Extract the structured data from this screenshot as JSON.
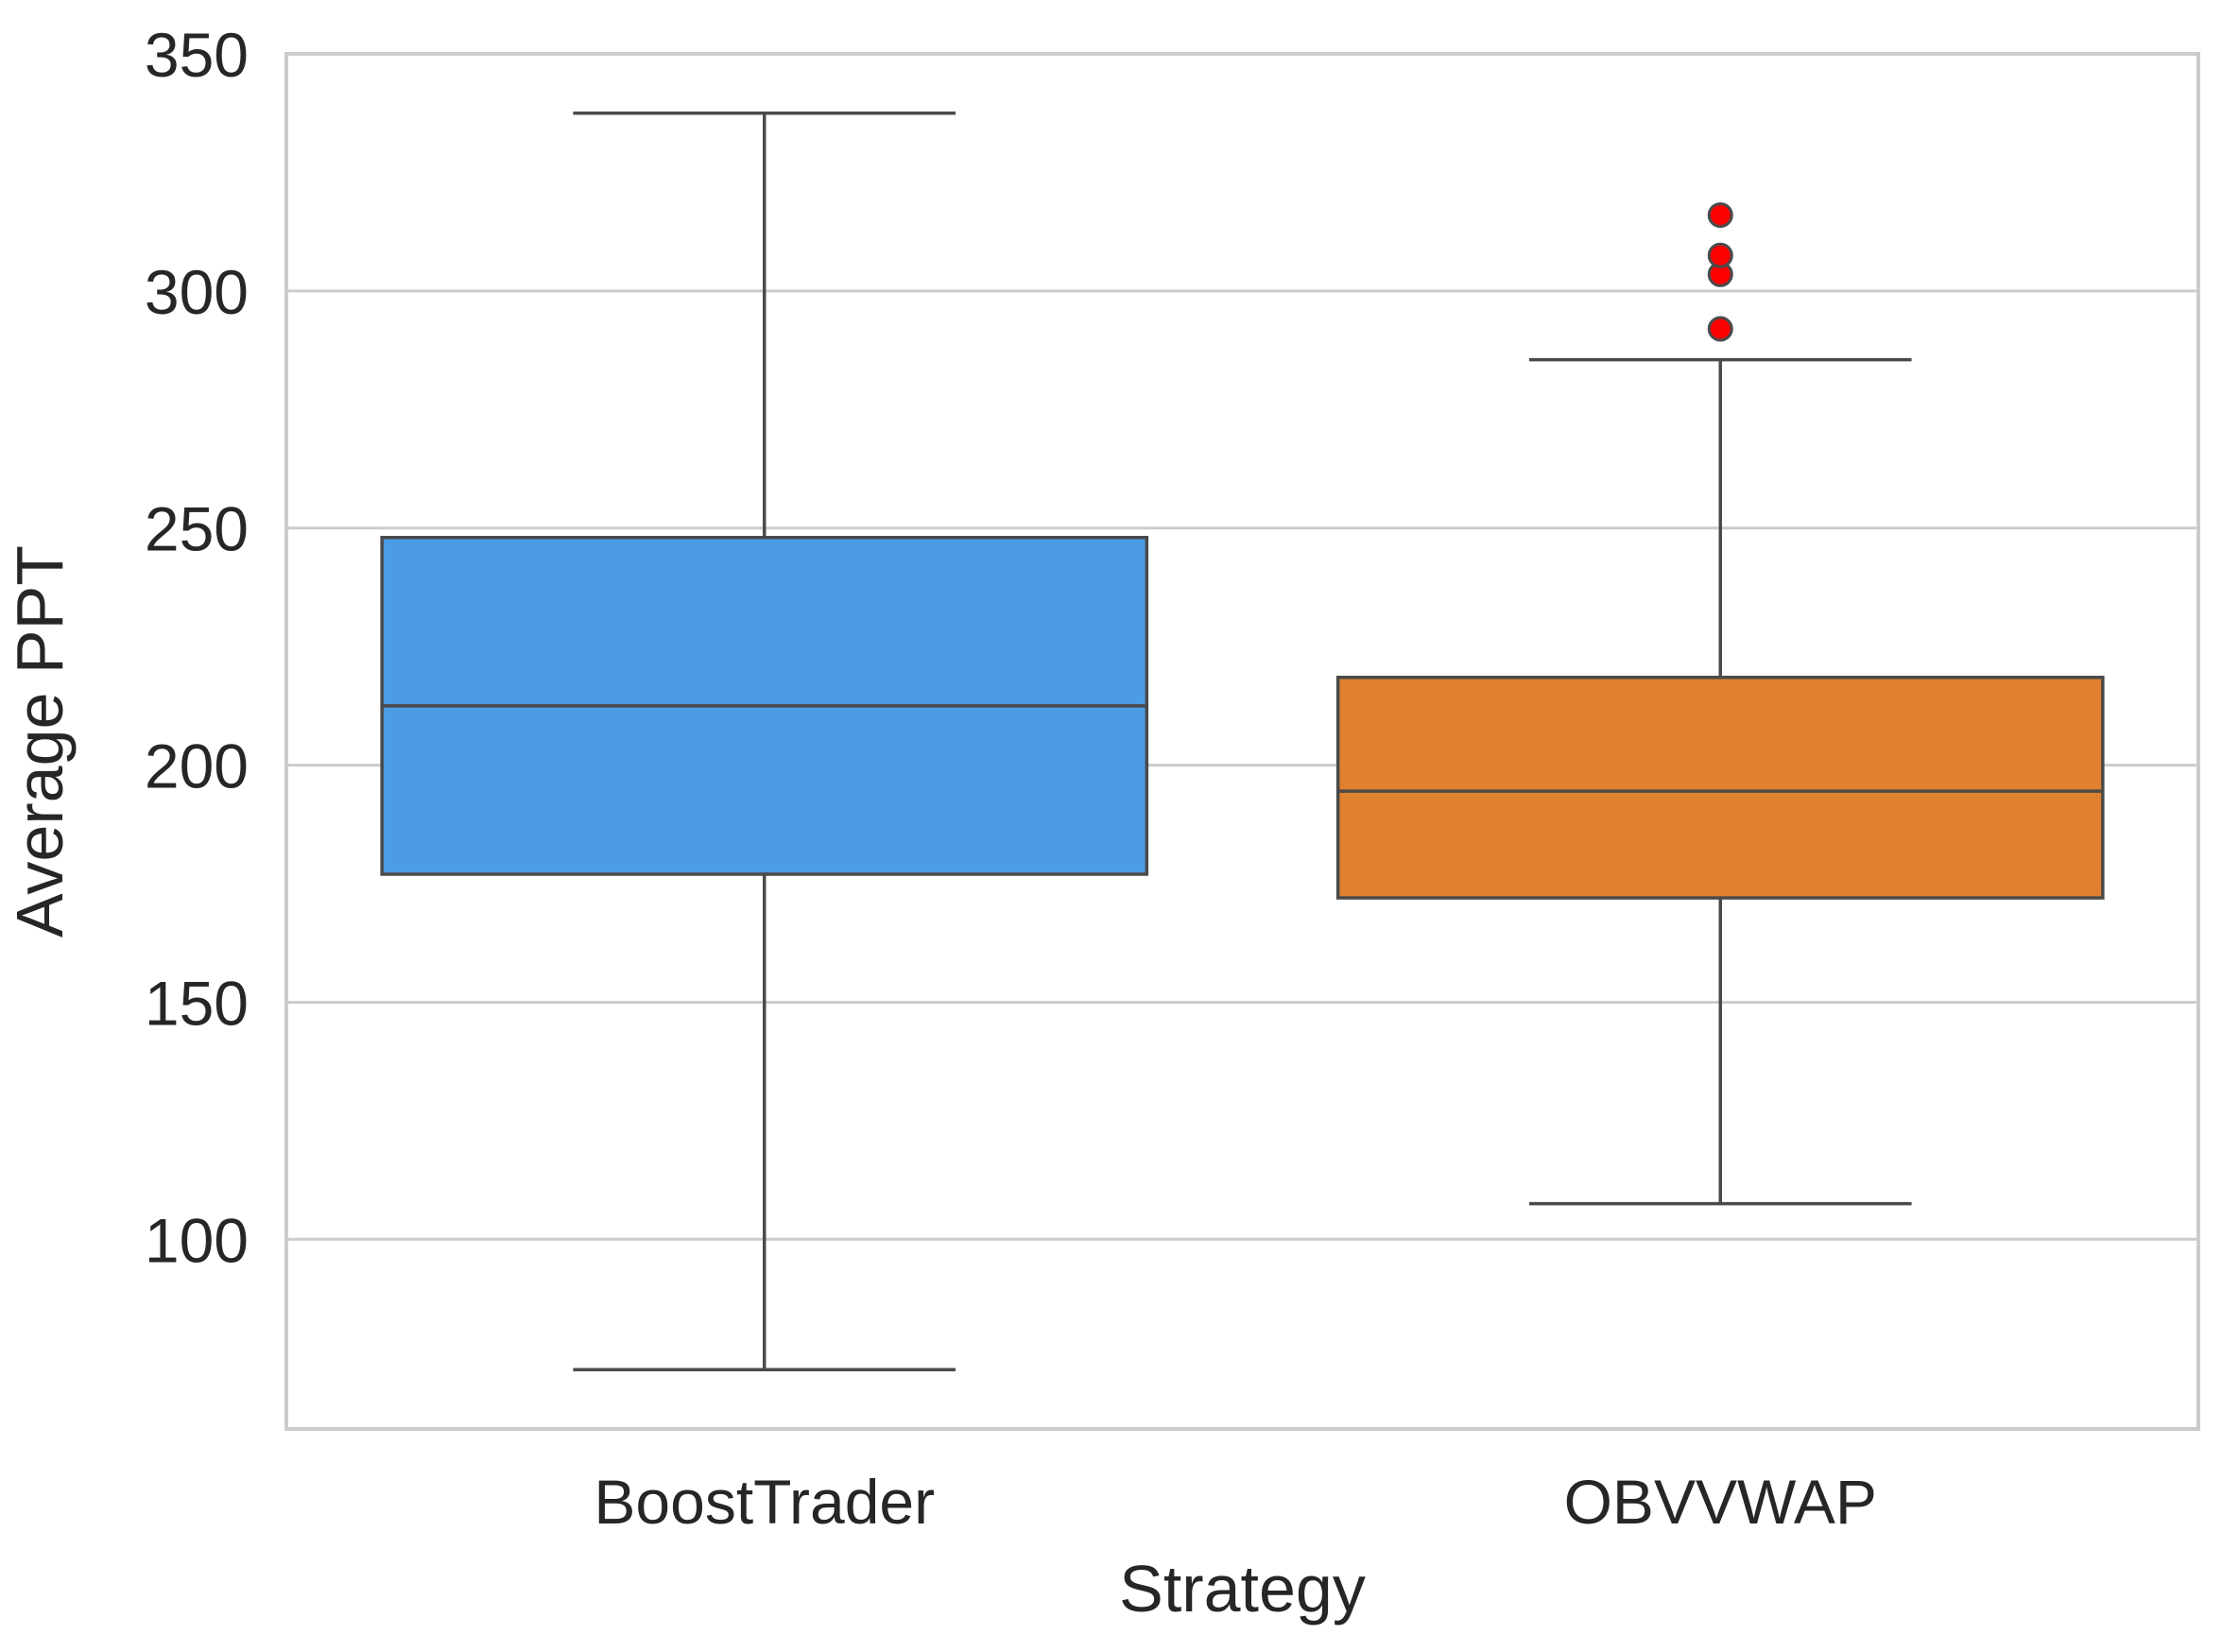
{
  "chart_data": {
    "type": "box",
    "title": "",
    "xlabel": "Strategy",
    "ylabel": "Average PPT",
    "ylim": [
      60,
      350
    ],
    "yticks": [
      100,
      150,
      200,
      250,
      300,
      350
    ],
    "grid": "horizontal",
    "categories": [
      "BoostTrader",
      "OBVVWAP"
    ],
    "boxes": [
      {
        "category": "BoostTrader",
        "whisker_low": 72.5,
        "q1": 177,
        "median": 212.5,
        "q3": 248,
        "whisker_high": 337.5,
        "outliers": [],
        "color": "#4c9be5"
      },
      {
        "category": "OBVVWAP",
        "whisker_low": 107.5,
        "q1": 172,
        "median": 194.5,
        "q3": 218.5,
        "whisker_high": 285.5,
        "outliers": [
          292,
          303.5,
          307.5,
          316
        ],
        "color": "#e0812f"
      }
    ],
    "outlier_color": "#ff0000",
    "line_color": "#4a4a4a",
    "grid_color": "#cccccc",
    "frame_color": "#cccccc"
  }
}
